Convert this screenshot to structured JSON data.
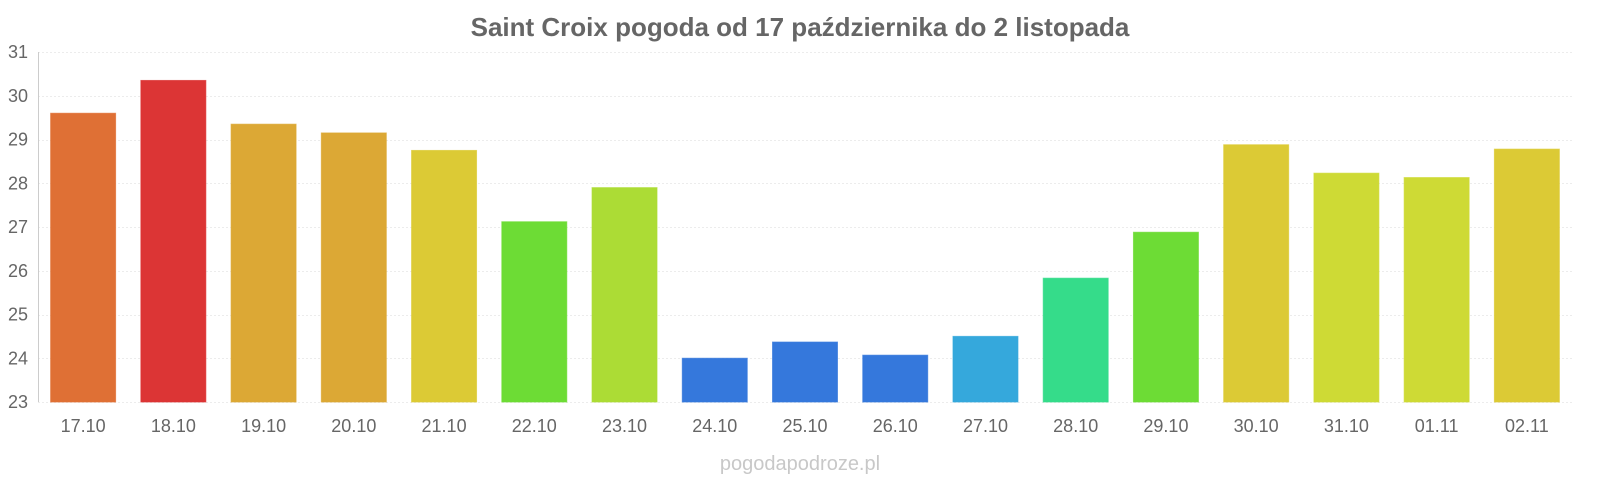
{
  "chart_data": {
    "type": "bar",
    "title": "Saint Croix pogoda od 17 października do 2 listopada",
    "xlabel": "",
    "ylabel": "",
    "categories": [
      "17.10",
      "18.10",
      "19.10",
      "20.10",
      "21.10",
      "22.10",
      "23.10",
      "24.10",
      "25.10",
      "26.10",
      "27.10",
      "28.10",
      "29.10",
      "30.10",
      "31.10",
      "01.11",
      "02.11"
    ],
    "values": [
      29.6,
      30.35,
      29.35,
      29.15,
      28.75,
      27.12,
      27.9,
      24.0,
      24.37,
      24.07,
      24.5,
      25.83,
      26.88,
      28.88,
      28.23,
      28.13,
      28.78
    ],
    "colors": [
      "#df7035",
      "#dc3535",
      "#dca835",
      "#dca835",
      "#dcca35",
      "#6ddc35",
      "#acdc35",
      "#3578dc",
      "#3578dc",
      "#3578dc",
      "#35a8dc",
      "#35dc8a",
      "#6ddc35",
      "#dcca35",
      "#ceda35",
      "#ceda35",
      "#dcca35"
    ],
    "ylim": [
      23,
      31
    ],
    "yticks": [
      23,
      24,
      25,
      26,
      27,
      28,
      29,
      30,
      31
    ],
    "grid": true,
    "legend": "none"
  },
  "credit": "pogodapodroze.pl"
}
